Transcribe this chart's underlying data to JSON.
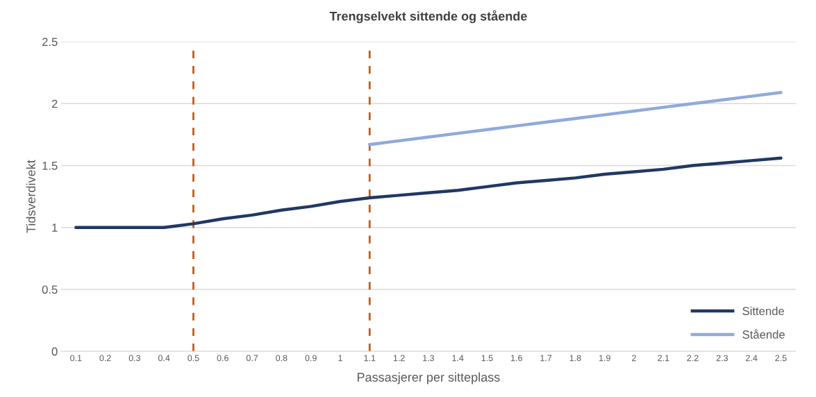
{
  "chart_data": {
    "type": "line",
    "title": "Trengselvekt sittende og stående",
    "xlabel": "Passasjerer per sitteplass",
    "ylabel": "Tidsverdivekt",
    "categories": [
      "0.1",
      "0.2",
      "0.3",
      "0.4",
      "0.5",
      "0.6",
      "0.7",
      "0.8",
      "0.9",
      "1",
      "1.1",
      "1.2",
      "1.3",
      "1.4",
      "1.5",
      "1.6",
      "1.7",
      "1.8",
      "1.9",
      "2",
      "2.1",
      "2.2",
      "2.3",
      "2.4",
      "2.5"
    ],
    "series": [
      {
        "name": "Sittende",
        "color": "#203864",
        "values": [
          1.0,
          1.0,
          1.0,
          1.0,
          1.03,
          1.07,
          1.1,
          1.14,
          1.17,
          1.21,
          1.24,
          1.26,
          1.28,
          1.3,
          1.33,
          1.36,
          1.38,
          1.4,
          1.43,
          1.45,
          1.47,
          1.5,
          1.52,
          1.54,
          1.56
        ]
      },
      {
        "name": "Stående",
        "color": "#8faadc",
        "values": [
          null,
          null,
          null,
          null,
          null,
          null,
          null,
          null,
          null,
          null,
          1.67,
          1.7,
          1.73,
          1.76,
          1.79,
          1.82,
          1.85,
          1.88,
          1.91,
          1.94,
          1.97,
          2.0,
          2.03,
          2.06,
          2.09
        ]
      }
    ],
    "ylim": [
      0,
      2.5
    ],
    "yticks": [
      0,
      0.5,
      1,
      1.5,
      2,
      2.5
    ],
    "ref_lines": [
      {
        "axis": "x",
        "value": "0.5",
        "color": "#c55a11",
        "line_style": "dashed"
      },
      {
        "axis": "x",
        "value": "1.1",
        "color": "#c55a11",
        "line_style": "dashed"
      }
    ],
    "grid": "y",
    "legend": "bottom right",
    "line_style": "solid"
  }
}
